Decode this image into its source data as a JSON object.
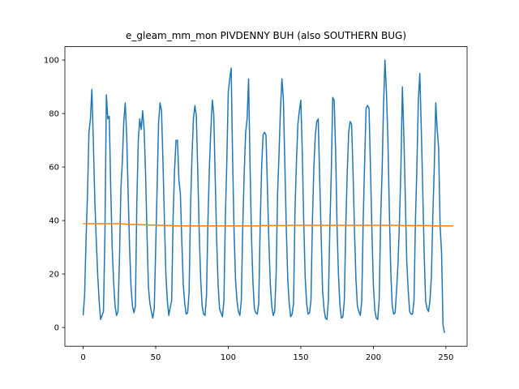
{
  "chart_data": {
    "type": "line",
    "title": "e_gleam_mm_mon PIVDENNY BUH (also SOUTHERN BUG)",
    "xlabel": "",
    "ylabel": "",
    "xlim": [
      -12.6,
      264.6
    ],
    "ylim": [
      -7,
      105
    ],
    "xticks": [
      0,
      50,
      100,
      150,
      200,
      250
    ],
    "yticks": [
      0,
      20,
      40,
      60,
      80,
      100
    ],
    "grid": false,
    "colors": {
      "series_1": "#1f77b4",
      "series_2": "#ff7f0e"
    },
    "series": [
      {
        "values": [
          4.5,
          12,
          33,
          50,
          73,
          78,
          89,
          70,
          48,
          33,
          20,
          10,
          3,
          4.5,
          6,
          35,
          87,
          78,
          79,
          52,
          30,
          17,
          8,
          4.5,
          6,
          25,
          52,
          62,
          77,
          84,
          72,
          50,
          30,
          15,
          8,
          5.5,
          8,
          47,
          70,
          78,
          74,
          81,
          74,
          58,
          35,
          15,
          9,
          6,
          3.5,
          7,
          30,
          53,
          77,
          84,
          81,
          62,
          40,
          20,
          10,
          4.5,
          7.5,
          10,
          41,
          59,
          70,
          70,
          55,
          50,
          32,
          16,
          9,
          5,
          5.5,
          13,
          45,
          64,
          78,
          83,
          79,
          58,
          35,
          18,
          8,
          5,
          4.5,
          12,
          40,
          60,
          74,
          85,
          80,
          56,
          33,
          16,
          7,
          5.5,
          4,
          10,
          41,
          62,
          88,
          93,
          97,
          63,
          36,
          18,
          10,
          6,
          4.5,
          10,
          38,
          58,
          73,
          78,
          93,
          61,
          34,
          17,
          7,
          5.5,
          5,
          9,
          38,
          60,
          72,
          73,
          72,
          52,
          32,
          16,
          8,
          4.5,
          6,
          20,
          50,
          65,
          82,
          93,
          85,
          61,
          37,
          18,
          9,
          4,
          5,
          9,
          44,
          62,
          76,
          81,
          85,
          66,
          40,
          19,
          9,
          5,
          5.5,
          10,
          40,
          60,
          72,
          77,
          78,
          56,
          35,
          14,
          7,
          3.5,
          3,
          10,
          37,
          58,
          86,
          85,
          66,
          37,
          19,
          8,
          3.5,
          4,
          10,
          38,
          58,
          73,
          77,
          76,
          58,
          36,
          18,
          8,
          6,
          4.5,
          10,
          40,
          62,
          82,
          83,
          82,
          60,
          36,
          16,
          6.5,
          3.5,
          3,
          10,
          40,
          58,
          83,
          100,
          88,
          71,
          44,
          21,
          8,
          5,
          5.5,
          14,
          24,
          40,
          60,
          90,
          72,
          49,
          25,
          14,
          6,
          5,
          5,
          10,
          40,
          60,
          85,
          95,
          75,
          52,
          28,
          10,
          7,
          6,
          10,
          19,
          42,
          60,
          84,
          74,
          67,
          38,
          28,
          1,
          -2
        ]
      },
      {
        "values": [
          38.8,
          38.8,
          38.8,
          38.8,
          38.8,
          38.8,
          38.8,
          38.8,
          38.8,
          38.8,
          38.8,
          38.8,
          38.8,
          38.8,
          38.8,
          38.8,
          38.8,
          38.8,
          38.8,
          38.8,
          38.8,
          38.8,
          38.8,
          38.8,
          38.8,
          38.8,
          38.8,
          38.7,
          38.7,
          38.7,
          38.6,
          38.6,
          38.6,
          38.5,
          38.5,
          38.5,
          38.5,
          38.5,
          38.5,
          38.4,
          38.4,
          38.4,
          38.4,
          38.4,
          38.4,
          38.3,
          38.3,
          38.3,
          38.3,
          38.3,
          38.3,
          38.2,
          38.2,
          38.2,
          38.2,
          38.2,
          38.2,
          38.1,
          38.1,
          38.1,
          38.1,
          38.1,
          38.1,
          38.0,
          38.0,
          38.0,
          38.0,
          38.0,
          38.0,
          38.0,
          38.0,
          38.0,
          38.0,
          38.0,
          38.0,
          38.0,
          38.0,
          38.0,
          38.0,
          38.0,
          38.0,
          38.0,
          38.0,
          38.0,
          38.0,
          38.0,
          38.0,
          38.0,
          38.0,
          38.0,
          38.0,
          38.0,
          38.0,
          38.0,
          38.0,
          38.0,
          38.0,
          38.0,
          38.0,
          38.0,
          38.0,
          38.0,
          38.0,
          38.0,
          38.0,
          38.0,
          38.0,
          38.0,
          38.0,
          38.0,
          38.0,
          38.0,
          38.0,
          38.0,
          38.0,
          38.0,
          38.0,
          38.0,
          38.0,
          38.0,
          38.0,
          38.0,
          38.0,
          38.1,
          38.1,
          38.1,
          38.1,
          38.1,
          38.1,
          38.1,
          38.1,
          38.1,
          38.1,
          38.1,
          38.1,
          38.1,
          38.1,
          38.1,
          38.1,
          38.1,
          38.1,
          38.1,
          38.2,
          38.2,
          38.2,
          38.2,
          38.2,
          38.2,
          38.2,
          38.2,
          38.2,
          38.2,
          38.2,
          38.2,
          38.2,
          38.2,
          38.2,
          38.2,
          38.2,
          38.2,
          38.2,
          38.2,
          38.2,
          38.2,
          38.2,
          38.2,
          38.2,
          38.2,
          38.2,
          38.2,
          38.2,
          38.2,
          38.2,
          38.2,
          38.2,
          38.2,
          38.2,
          38.2,
          38.2,
          38.2,
          38.2,
          38.2,
          38.2,
          38.2,
          38.2,
          38.2,
          38.2,
          38.2,
          38.2,
          38.2,
          38.2,
          38.2,
          38.2,
          38.2,
          38.2,
          38.2,
          38.2,
          38.2,
          38.2,
          38.2,
          38.2,
          38.2,
          38.2,
          38.2,
          38.2,
          38.2,
          38.2,
          38.2,
          38.2,
          38.2,
          38.2,
          38.2,
          38.2,
          38.2,
          38.2,
          38.2,
          38.2,
          38.2,
          38.2,
          38.1,
          38.1,
          38.1,
          38.1,
          38.1,
          38.1,
          38.1,
          38.1,
          38.1,
          38.1,
          38.1,
          38.1,
          38.1,
          38.1,
          38.1,
          38.1,
          38.1,
          38.1,
          38.1,
          38.1,
          38.1,
          38.0,
          38.0,
          38.0,
          38.0,
          38.0,
          38.0,
          38.0,
          38.0,
          38.0,
          38.0,
          38.0,
          38.0,
          38.0,
          38.0,
          38.0,
          38.0
        ]
      }
    ]
  }
}
